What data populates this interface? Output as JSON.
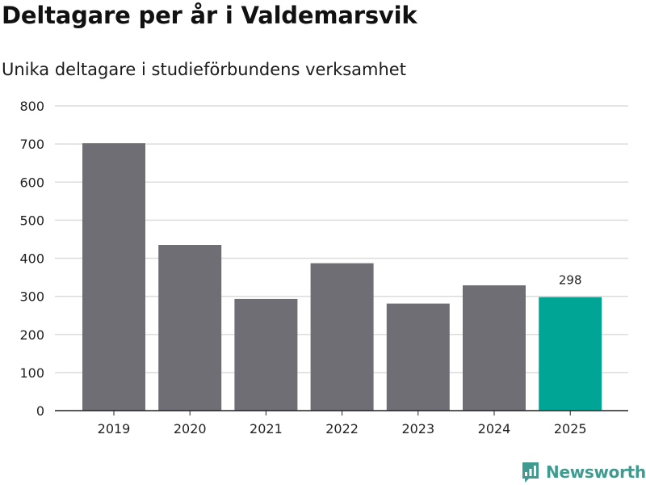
{
  "header": {
    "title": "Deltagare per år i Valdemarsvik",
    "subtitle": "Unika deltagare i studieförbundens verksamhet"
  },
  "brand": {
    "name": "Newsworthy",
    "color": "#3f9b8f"
  },
  "colors": {
    "bar": "#6f6e75",
    "highlight": "#00a596",
    "grid": "#dcdcdc",
    "axis": "#222222"
  },
  "chart_data": {
    "type": "bar",
    "categories": [
      "2019",
      "2020",
      "2021",
      "2022",
      "2023",
      "2024",
      "2025"
    ],
    "values": [
      702,
      435,
      293,
      387,
      281,
      329,
      298
    ],
    "highlight_index": 6,
    "data_labels": [
      null,
      null,
      null,
      null,
      null,
      null,
      "298"
    ],
    "yticks": [
      0,
      100,
      200,
      300,
      400,
      500,
      600,
      700,
      800
    ],
    "ylim": [
      0,
      800
    ],
    "grid": true,
    "legend": "none"
  }
}
